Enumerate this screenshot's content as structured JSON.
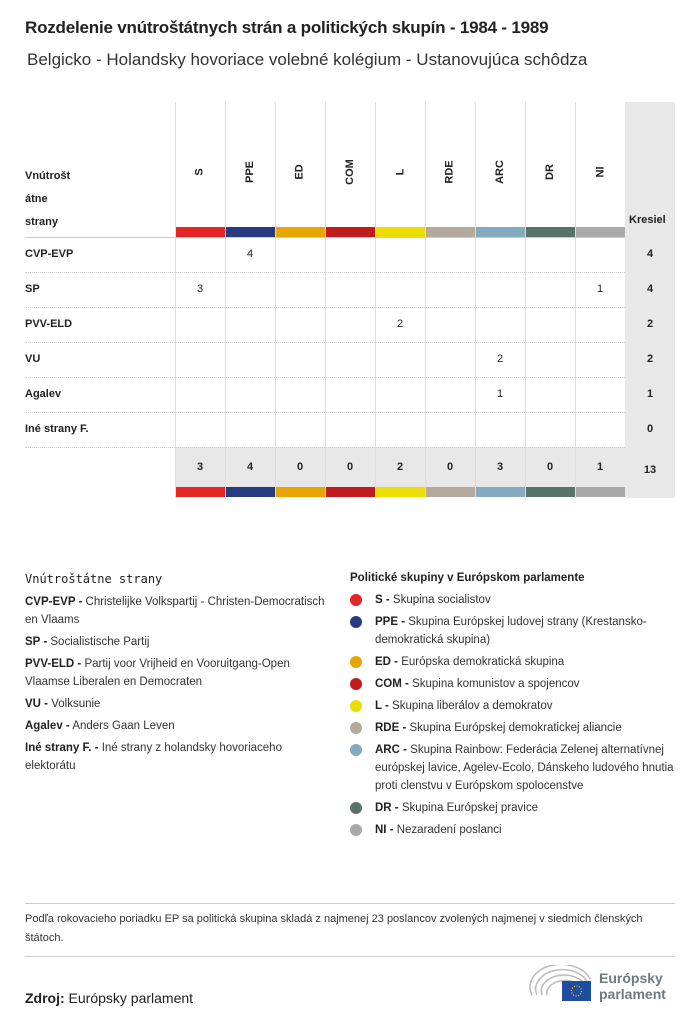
{
  "title": "Rozdelenie vnútroštátnych strán a politických skupín - 1984 - 1989",
  "subtitle": "Belgicko - Holandsky hovoriace volebné kolégium - Ustanovujúca schôdza",
  "chart_data": {
    "type": "table",
    "row_header": "Vnútrošt\nátne\nstrany",
    "seats_header": "Kresiel",
    "groups": [
      {
        "code": "S",
        "color": "#e32526"
      },
      {
        "code": "PPE",
        "color": "#283a80"
      },
      {
        "code": "ED",
        "color": "#e8a500"
      },
      {
        "code": "COM",
        "color": "#c21b1d"
      },
      {
        "code": "L",
        "color": "#ecdc00"
      },
      {
        "code": "RDE",
        "color": "#b3aa9d"
      },
      {
        "code": "ARC",
        "color": "#84aac0"
      },
      {
        "code": "DR",
        "color": "#58746a"
      },
      {
        "code": "NI",
        "color": "#a9a9a9"
      }
    ],
    "rows": [
      {
        "party": "CVP-EVP",
        "values": [
          null,
          4,
          null,
          null,
          null,
          null,
          null,
          null,
          null
        ],
        "seats": 4
      },
      {
        "party": "SP",
        "values": [
          3,
          null,
          null,
          null,
          null,
          null,
          null,
          null,
          1
        ],
        "seats": 4
      },
      {
        "party": "PVV-ELD",
        "values": [
          null,
          null,
          null,
          null,
          2,
          null,
          null,
          null,
          null
        ],
        "seats": 2
      },
      {
        "party": "VU",
        "values": [
          null,
          null,
          null,
          null,
          null,
          null,
          2,
          null,
          null
        ],
        "seats": 2
      },
      {
        "party": "Agalev",
        "values": [
          null,
          null,
          null,
          null,
          null,
          null,
          1,
          null,
          null
        ],
        "seats": 1
      },
      {
        "party": "Iné strany F.",
        "values": [
          null,
          null,
          null,
          null,
          null,
          null,
          null,
          null,
          null
        ],
        "seats": 0
      }
    ],
    "totals": [
      3,
      4,
      0,
      0,
      2,
      0,
      3,
      0,
      1
    ],
    "total_seats": 13
  },
  "legend": {
    "parties_title": "Vnútroštátne strany",
    "parties": [
      {
        "code": "CVP-EVP -",
        "name": "Christelijke Volkspartij - Christen-Democratisch en Vlaams"
      },
      {
        "code": "SP -",
        "name": "Socialistische Partij"
      },
      {
        "code": "PVV-ELD -",
        "name": "Partij voor Vrijheid en Vooruitgang-Open Vlaamse Liberalen en Democraten"
      },
      {
        "code": "VU -",
        "name": "Volksunie"
      },
      {
        "code": "Agalev -",
        "name": "Anders Gaan Leven"
      },
      {
        "code": "Iné strany F. -",
        "name": "Iné strany z holandsky hovoriaceho elektorátu"
      }
    ],
    "groups_title": "Politické skupiny v Európskom parlamente",
    "groups": [
      {
        "code": "S -",
        "name": "Skupina socialistov",
        "color": "#e32526"
      },
      {
        "code": "PPE -",
        "name": "Skupina Európskej ludovej strany (Krestansko-demokratická skupina)",
        "color": "#283a80"
      },
      {
        "code": "ED -",
        "name": "Európska demokratická skupina",
        "color": "#e8a500"
      },
      {
        "code": "COM -",
        "name": "Skupina komunistov a spojencov",
        "color": "#c21b1d"
      },
      {
        "code": "L -",
        "name": "Skupina liberálov a demokratov",
        "color": "#ecdc00"
      },
      {
        "code": "RDE -",
        "name": "Skupina Európskej demokratickej aliancie",
        "color": "#b3aa9d"
      },
      {
        "code": "ARC -",
        "name": "Skupina Rainbow: Federácia Zelenej alternatívnej európskej lavice, Agelev-Ecolo, Dánskeho ludového hnutia proti clenstvu v Európskom spolocenstve",
        "color": "#84aac0"
      },
      {
        "code": "DR -",
        "name": "Skupina Európskej pravice",
        "color": "#58746a"
      },
      {
        "code": "NI -",
        "name": "Nezaradení poslanci",
        "color": "#a9a9a9"
      }
    ]
  },
  "footnote": "Podľa rokovacieho poriadku EP sa politická skupina skladá z najmenej 23 poslancov zvolených najmenej v siedmich členských štátoch.",
  "source": {
    "label": "Zdroj:",
    "value": "Európsky parlament"
  },
  "logo": {
    "line1": "Európsky",
    "line2": "parlament"
  }
}
